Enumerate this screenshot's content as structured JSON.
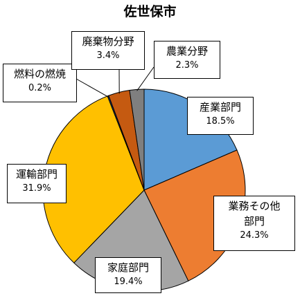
{
  "chart_data": {
    "type": "pie",
    "title": "佐世保市",
    "slices": [
      {
        "label": "産業部門",
        "value": 18.5,
        "value_text": "18.5%",
        "color": "#5b9bd5"
      },
      {
        "label": "業務その他部門",
        "label_lines": [
          "業務その他",
          "部門"
        ],
        "value": 24.3,
        "value_text": "24.3%",
        "color": "#ed7d31"
      },
      {
        "label": "家庭部門",
        "value": 19.4,
        "value_text": "19.4%",
        "color": "#a5a5a5"
      },
      {
        "label": "運輸部門",
        "value": 31.9,
        "value_text": "31.9%",
        "color": "#ffc000"
      },
      {
        "label": "燃料の燃焼",
        "value": 0.2,
        "value_text": "0.2%",
        "color": "#264478"
      },
      {
        "label": "廃棄物分野",
        "value": 3.4,
        "value_text": "3.4%",
        "color": "#c55a11"
      },
      {
        "label": "農業分野",
        "value": 2.3,
        "value_text": "2.3%",
        "color": "#7f7f7f"
      }
    ],
    "start_angle_deg": 0,
    "direction": "clockwise"
  }
}
